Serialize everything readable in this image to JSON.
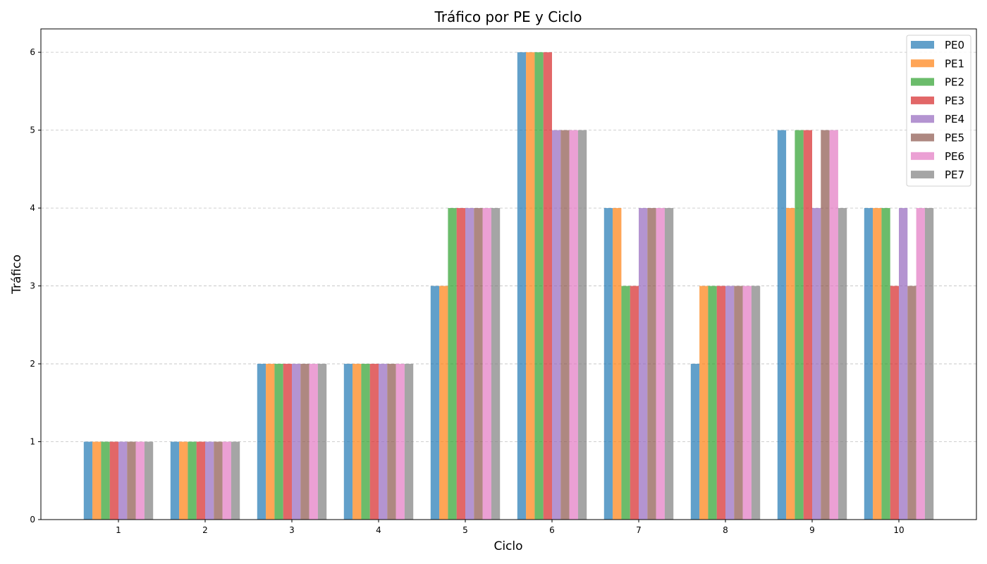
{
  "chart_data": {
    "type": "bar",
    "title": "Tráfico por PE y Ciclo",
    "xlabel": "Ciclo",
    "ylabel": "Tráfico",
    "categories": [
      "1",
      "2",
      "3",
      "4",
      "5",
      "6",
      "7",
      "8",
      "9",
      "10"
    ],
    "ylim": [
      0,
      6.3
    ],
    "yticks": [
      0,
      1,
      2,
      3,
      4,
      5,
      6
    ],
    "grid": "horizontal dashed",
    "legend_position": "top-right",
    "series": [
      {
        "name": "PE0",
        "color": "#1f77b4",
        "values": [
          1,
          1,
          2,
          2,
          3,
          6,
          4,
          2,
          5,
          4
        ]
      },
      {
        "name": "PE1",
        "color": "#ff7f0e",
        "values": [
          1,
          1,
          2,
          2,
          3,
          6,
          4,
          3,
          4,
          4
        ]
      },
      {
        "name": "PE2",
        "color": "#2ca02c",
        "values": [
          1,
          1,
          2,
          2,
          4,
          6,
          3,
          3,
          5,
          4
        ]
      },
      {
        "name": "PE3",
        "color": "#d62728",
        "values": [
          1,
          1,
          2,
          2,
          4,
          6,
          3,
          3,
          5,
          3
        ]
      },
      {
        "name": "PE4",
        "color": "#9467bd",
        "values": [
          1,
          1,
          2,
          2,
          4,
          5,
          4,
          3,
          4,
          4
        ]
      },
      {
        "name": "PE5",
        "color": "#8c564b",
        "values": [
          1,
          1,
          2,
          2,
          4,
          5,
          4,
          3,
          5,
          3
        ]
      },
      {
        "name": "PE6",
        "color": "#e377c2",
        "values": [
          1,
          1,
          2,
          2,
          4,
          5,
          4,
          3,
          5,
          4
        ]
      },
      {
        "name": "PE7",
        "color": "#7f7f7f",
        "values": [
          1,
          1,
          2,
          2,
          4,
          5,
          4,
          3,
          4,
          4
        ]
      }
    ]
  }
}
